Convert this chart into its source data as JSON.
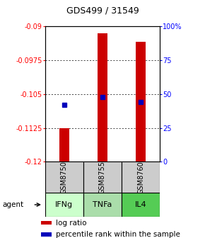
{
  "title": "GDS499 / 31549",
  "samples": [
    "GSM8750",
    "GSM8755",
    "GSM8760"
  ],
  "agents": [
    "IFNg",
    "TNFa",
    "IL4"
  ],
  "log_ratios": [
    -0.1125,
    -0.0915,
    -0.0935
  ],
  "percentile_ranks": [
    42,
    48,
    44
  ],
  "ymin": -0.12,
  "ymax": -0.09,
  "yticks": [
    -0.09,
    -0.0975,
    -0.105,
    -0.1125,
    -0.12
  ],
  "ytick_labels": [
    "-0.09",
    "-0.0975",
    "-0.105",
    "-0.1125",
    "-0.12"
  ],
  "y2ticks": [
    0,
    25,
    50,
    75,
    100
  ],
  "y2tick_labels": [
    "0",
    "25",
    "50",
    "75",
    "100%"
  ],
  "bar_color": "#cc0000",
  "dot_color": "#0000bb",
  "bar_width": 0.25,
  "sample_box_color": "#cccccc",
  "agent_box_colors": [
    "#ccffcc",
    "#aaddaa",
    "#55cc55"
  ]
}
